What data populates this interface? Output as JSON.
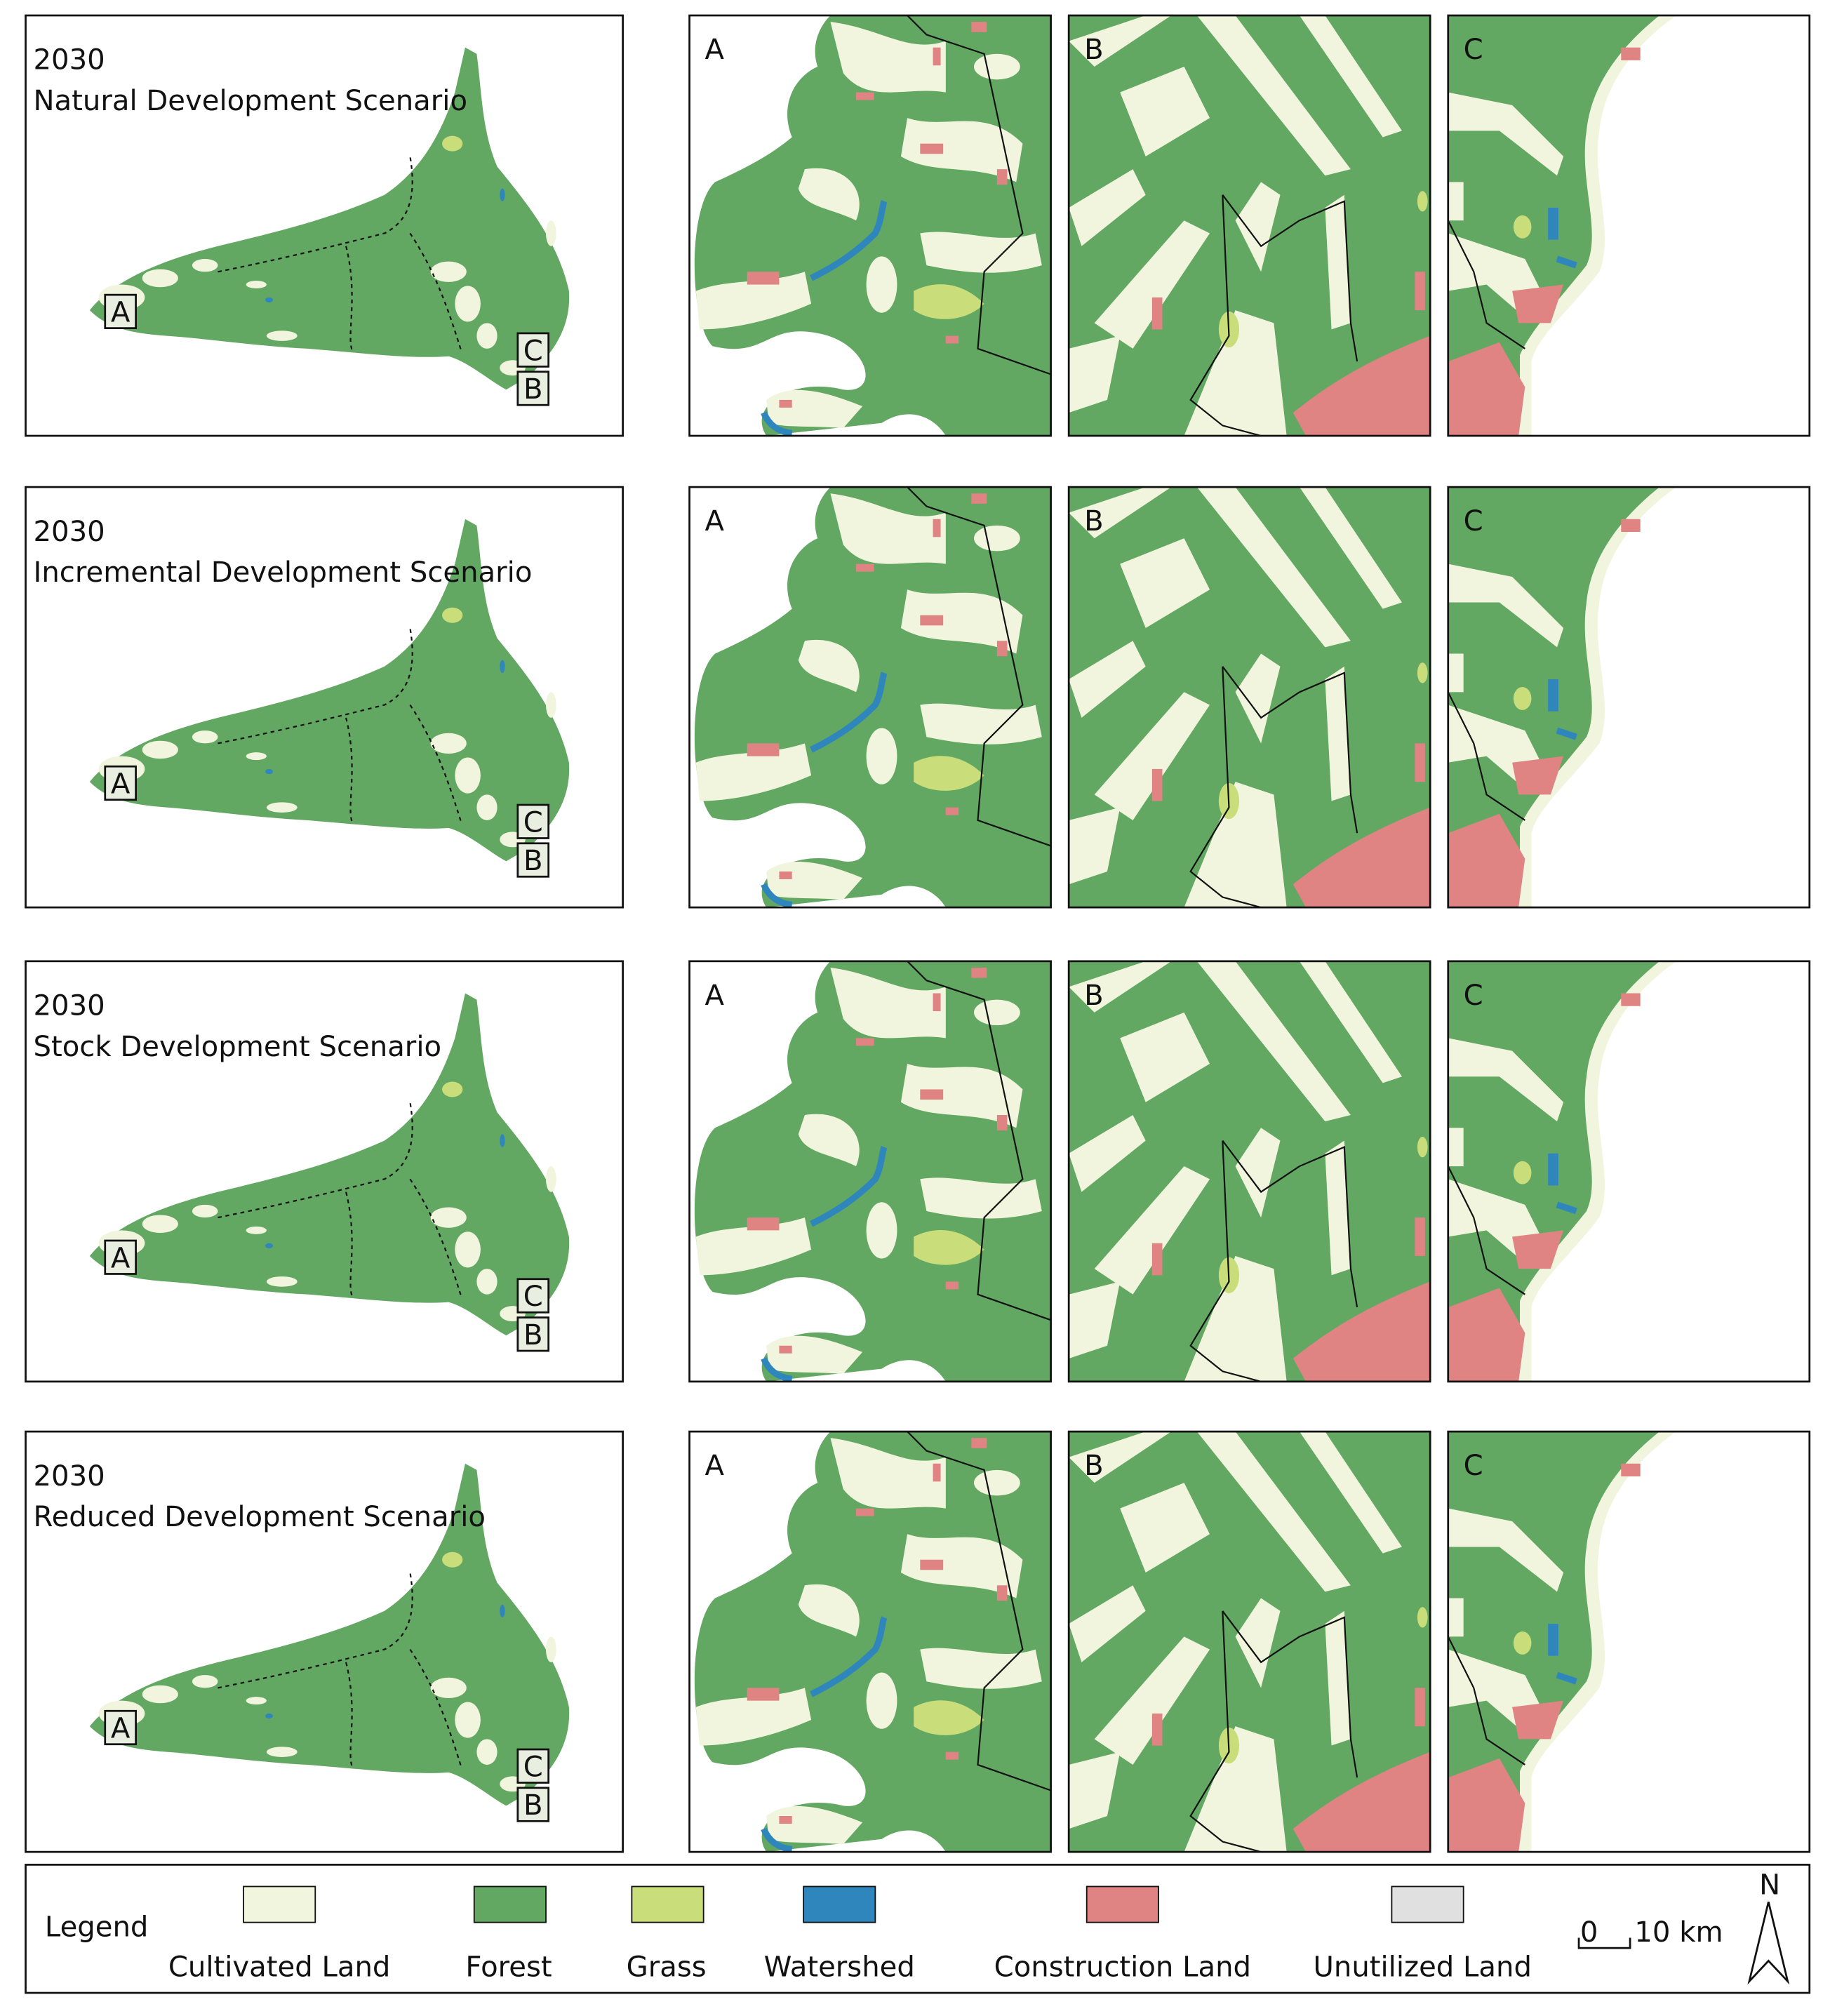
{
  "panels": [
    {
      "year": "2030",
      "scenario": "Natural Development Scenario"
    },
    {
      "year": "2030",
      "scenario": "Incremental Development Scenario"
    },
    {
      "year": "2030",
      "scenario": "Stock Development Scenario"
    },
    {
      "year": "2030",
      "scenario": "Reduced Development Scenario"
    }
  ],
  "insets": [
    "A",
    "B",
    "C"
  ],
  "legend": {
    "title": "Legend",
    "items": [
      {
        "label": "Cultivated Land",
        "color": "#f1f5dd"
      },
      {
        "label": "Forest",
        "color": "#62a862"
      },
      {
        "label": "Grass",
        "color": "#c9de7a"
      },
      {
        "label": "Watershed",
        "color": "#2f86bc"
      },
      {
        "label": "Construction Land",
        "color": "#e08383"
      },
      {
        "label": "Unutilized Land",
        "color": "#e0e0e0"
      }
    ]
  },
  "scale_bar": {
    "start": "0",
    "end": "10 km"
  },
  "north": "N"
}
